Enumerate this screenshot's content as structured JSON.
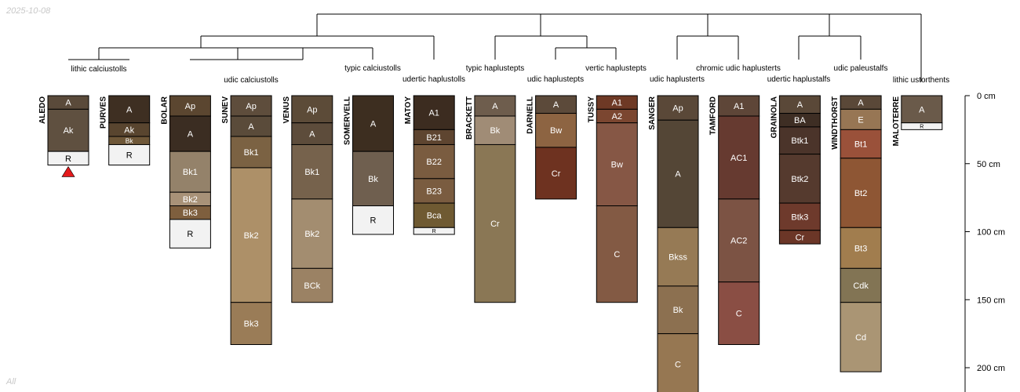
{
  "date_label": "2025-10-08",
  "footer_label": "All",
  "colors": {
    "line": "#000000",
    "text_dark": "#000000",
    "text_light": "#ffffff",
    "marker": "#e41a1c"
  },
  "chart_data": {
    "type": "soil-profile-sketch",
    "depth_unit": "cm",
    "depth_range": [
      0,
      210
    ],
    "depth_ticks": [
      {
        "value": 0,
        "label": "0 cm"
      },
      {
        "value": 50,
        "label": "50 cm"
      },
      {
        "value": 100,
        "label": "100 cm"
      },
      {
        "value": 150,
        "label": "150 cm"
      },
      {
        "value": 200,
        "label": "200 cm"
      }
    ],
    "profiles": [
      {
        "name": "ALEDO",
        "taxon": "lithic calciustolls",
        "marker": "red-triangle",
        "horizons": [
          {
            "name": "A",
            "top": 0,
            "bottom": 10,
            "color": "#5a4a3a"
          },
          {
            "name": "Ak",
            "top": 10,
            "bottom": 41,
            "color": "#5f5040"
          },
          {
            "name": "R",
            "top": 41,
            "bottom": 51,
            "color": "#f2f2f2"
          }
        ]
      },
      {
        "name": "PURVES",
        "taxon": "",
        "horizons": [
          {
            "name": "A",
            "top": 0,
            "bottom": 20,
            "color": "#3e2f22"
          },
          {
            "name": "Ak",
            "top": 20,
            "bottom": 30,
            "color": "#59452f"
          },
          {
            "name": "Bk",
            "top": 30,
            "bottom": 36,
            "color": "#6e5738"
          },
          {
            "name": "R",
            "top": 36,
            "bottom": 51,
            "color": "#f2f2f2"
          }
        ]
      },
      {
        "name": "BOLAR",
        "taxon": "",
        "horizons": [
          {
            "name": "Ap",
            "top": 0,
            "bottom": 15,
            "color": "#5b4630"
          },
          {
            "name": "A",
            "top": 15,
            "bottom": 41,
            "color": "#3b2d22"
          },
          {
            "name": "Bk1",
            "top": 41,
            "bottom": 71,
            "color": "#94826a"
          },
          {
            "name": "Bk2",
            "top": 71,
            "bottom": 81,
            "color": "#a89278"
          },
          {
            "name": "Bk3",
            "top": 81,
            "bottom": 91,
            "color": "#7e5f3e"
          },
          {
            "name": "R",
            "top": 91,
            "bottom": 112,
            "color": "#f2f2f2"
          }
        ]
      },
      {
        "name": "SUNEV",
        "taxon": "udic calciustolls",
        "horizons": [
          {
            "name": "Ap",
            "top": 0,
            "bottom": 15,
            "color": "#5e4d3c"
          },
          {
            "name": "A",
            "top": 15,
            "bottom": 30,
            "color": "#5a4b3a"
          },
          {
            "name": "Bk1",
            "top": 30,
            "bottom": 53,
            "color": "#7b6243"
          },
          {
            "name": "Bk2",
            "top": 53,
            "bottom": 152,
            "color": "#ad9068"
          },
          {
            "name": "Bk3",
            "top": 152,
            "bottom": 183,
            "color": "#9a7c57"
          }
        ]
      },
      {
        "name": "VENUS",
        "taxon": "",
        "horizons": [
          {
            "name": "Ap",
            "top": 0,
            "bottom": 20,
            "color": "#5c4b38"
          },
          {
            "name": "A",
            "top": 20,
            "bottom": 36,
            "color": "#5d4c3b"
          },
          {
            "name": "Bk1",
            "top": 36,
            "bottom": 76,
            "color": "#76624c"
          },
          {
            "name": "Bk2",
            "top": 76,
            "bottom": 127,
            "color": "#a38d70"
          },
          {
            "name": "BCk",
            "top": 127,
            "bottom": 152,
            "color": "#9b8264"
          }
        ]
      },
      {
        "name": "SOMERVELL",
        "taxon": "typic calciustolls",
        "horizons": [
          {
            "name": "A",
            "top": 0,
            "bottom": 41,
            "color": "#3d2e20"
          },
          {
            "name": "Bk",
            "top": 41,
            "bottom": 81,
            "color": "#6f5f4f"
          },
          {
            "name": "R",
            "top": 81,
            "bottom": 102,
            "color": "#f2f2f2"
          }
        ]
      },
      {
        "name": "MATOY",
        "taxon": "udertic haplustolls",
        "horizons": [
          {
            "name": "A1",
            "top": 0,
            "bottom": 25,
            "color": "#3c2c20"
          },
          {
            "name": "B21",
            "top": 25,
            "bottom": 36,
            "color": "#5e4530"
          },
          {
            "name": "B22",
            "top": 36,
            "bottom": 61,
            "color": "#7a5c40"
          },
          {
            "name": "B23",
            "top": 61,
            "bottom": 79,
            "color": "#7a5c40"
          },
          {
            "name": "Bca",
            "top": 79,
            "bottom": 97,
            "color": "#6f5a32"
          },
          {
            "name": "R",
            "top": 97,
            "bottom": 102,
            "color": "#f2f2f2"
          }
        ]
      },
      {
        "name": "BRACKETT",
        "taxon": "typic haplustepts",
        "horizons": [
          {
            "name": "A",
            "top": 0,
            "bottom": 15,
            "color": "#6e5d4d"
          },
          {
            "name": "Bk",
            "top": 15,
            "bottom": 36,
            "color": "#a08c76"
          },
          {
            "name": "Cr",
            "top": 36,
            "bottom": 152,
            "color": "#8a7755"
          }
        ]
      },
      {
        "name": "DARNELL",
        "taxon": "udic haplustepts",
        "horizons": [
          {
            "name": "A",
            "top": 0,
            "bottom": 13,
            "color": "#5c4a3a"
          },
          {
            "name": "Bw",
            "top": 13,
            "bottom": 38,
            "color": "#8d6442"
          },
          {
            "name": "Cr",
            "top": 38,
            "bottom": 76,
            "color": "#6e3220"
          }
        ]
      },
      {
        "name": "TUSSY",
        "taxon": "vertic haplustepts",
        "horizons": [
          {
            "name": "A1",
            "top": 0,
            "bottom": 10,
            "color": "#6e3925"
          },
          {
            "name": "A2",
            "top": 10,
            "bottom": 20,
            "color": "#7b4630"
          },
          {
            "name": "Bw",
            "top": 20,
            "bottom": 81,
            "color": "#865745"
          },
          {
            "name": "C",
            "top": 81,
            "bottom": 152,
            "color": "#835a44"
          }
        ]
      },
      {
        "name": "SANGER",
        "taxon": "udic haplusterts",
        "horizons": [
          {
            "name": "Ap",
            "top": 0,
            "bottom": 18,
            "color": "#5a4838"
          },
          {
            "name": "A",
            "top": 18,
            "bottom": 97,
            "color": "#544636"
          },
          {
            "name": "Bkss",
            "top": 97,
            "bottom": 140,
            "color": "#967a55"
          },
          {
            "name": "Bk",
            "top": 140,
            "bottom": 175,
            "color": "#8c7050"
          },
          {
            "name": "C",
            "top": 175,
            "bottom": 220,
            "color": "#967752"
          }
        ]
      },
      {
        "name": "TAMFORD",
        "taxon": "chromic udic haplusterts",
        "horizons": [
          {
            "name": "A1",
            "top": 0,
            "bottom": 15,
            "color": "#5e4638"
          },
          {
            "name": "AC1",
            "top": 15,
            "bottom": 76,
            "color": "#663a30"
          },
          {
            "name": "AC2",
            "top": 76,
            "bottom": 137,
            "color": "#7c5344"
          },
          {
            "name": "C",
            "top": 137,
            "bottom": 183,
            "color": "#8a4e44"
          }
        ]
      },
      {
        "name": "GRAINOLA",
        "taxon": "udertic haplustalfs",
        "horizons": [
          {
            "name": "A",
            "top": 0,
            "bottom": 13,
            "color": "#5a4838"
          },
          {
            "name": "BA",
            "top": 13,
            "bottom": 23,
            "color": "#3e2e24"
          },
          {
            "name": "Btk1",
            "top": 23,
            "bottom": 43,
            "color": "#4b342a"
          },
          {
            "name": "Btk2",
            "top": 43,
            "bottom": 79,
            "color": "#553a2e"
          },
          {
            "name": "Btk3",
            "top": 79,
            "bottom": 99,
            "color": "#6e3a2c"
          },
          {
            "name": "Cr",
            "top": 99,
            "bottom": 109,
            "color": "#6b3627"
          }
        ]
      },
      {
        "name": "WINDTHORST",
        "taxon": "udic paleustalfs",
        "horizons": [
          {
            "name": "A",
            "top": 0,
            "bottom": 10,
            "color": "#5a4838"
          },
          {
            "name": "E",
            "top": 10,
            "bottom": 25,
            "color": "#977654"
          },
          {
            "name": "Bt1",
            "top": 25,
            "bottom": 46,
            "color": "#9a513a"
          },
          {
            "name": "Bt2",
            "top": 46,
            "bottom": 97,
            "color": "#8e5634"
          },
          {
            "name": "Bt3",
            "top": 97,
            "bottom": 127,
            "color": "#a17d4e"
          },
          {
            "name": "Cdk",
            "top": 127,
            "bottom": 152,
            "color": "#827454"
          },
          {
            "name": "Cd",
            "top": 152,
            "bottom": 203,
            "color": "#aa9574"
          }
        ]
      },
      {
        "name": "MALOTERRE",
        "taxon": "lithic ustorthents",
        "horizons": [
          {
            "name": "A",
            "top": 0,
            "bottom": 20,
            "color": "#6a5a4a"
          },
          {
            "name": "R",
            "top": 20,
            "bottom": 25,
            "color": "#f2f2f2"
          }
        ]
      }
    ]
  }
}
